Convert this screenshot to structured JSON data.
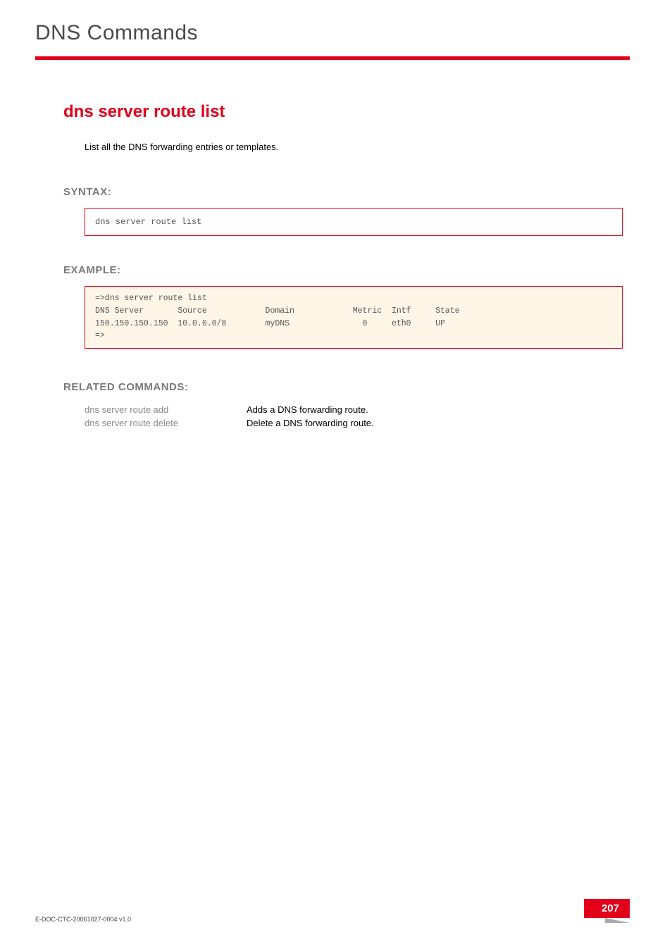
{
  "chapter_title": "DNS Commands",
  "command_title": "dns server route list",
  "description": "List all the DNS forwarding entries or templates.",
  "sections": {
    "syntax": {
      "heading": "SYNTAX:",
      "code": "dns server route list"
    },
    "example": {
      "heading": "EXAMPLE:",
      "code": "=>dns server route list\nDNS Server       Source            Domain            Metric  Intf     State\n150.150.150.150  10.0.0.0/8        myDNS               0     eth0     UP\n=>"
    },
    "related": {
      "heading": "RELATED COMMANDS:",
      "rows": [
        {
          "cmd": "dns server route add",
          "desc": "Adds a DNS forwarding route."
        },
        {
          "cmd": "dns server route delete",
          "desc": "Delete a DNS forwarding route."
        }
      ]
    }
  },
  "footer": {
    "doc_id": "E-DOC-CTC-20061027-0004 v1.0",
    "page_number": "207"
  },
  "colors": {
    "accent": "#e2001a",
    "heading_gray": "#7a7a7a",
    "chapter_gray": "#4a4a4a",
    "example_bg": "#fff6e8",
    "muted_text": "#888"
  }
}
